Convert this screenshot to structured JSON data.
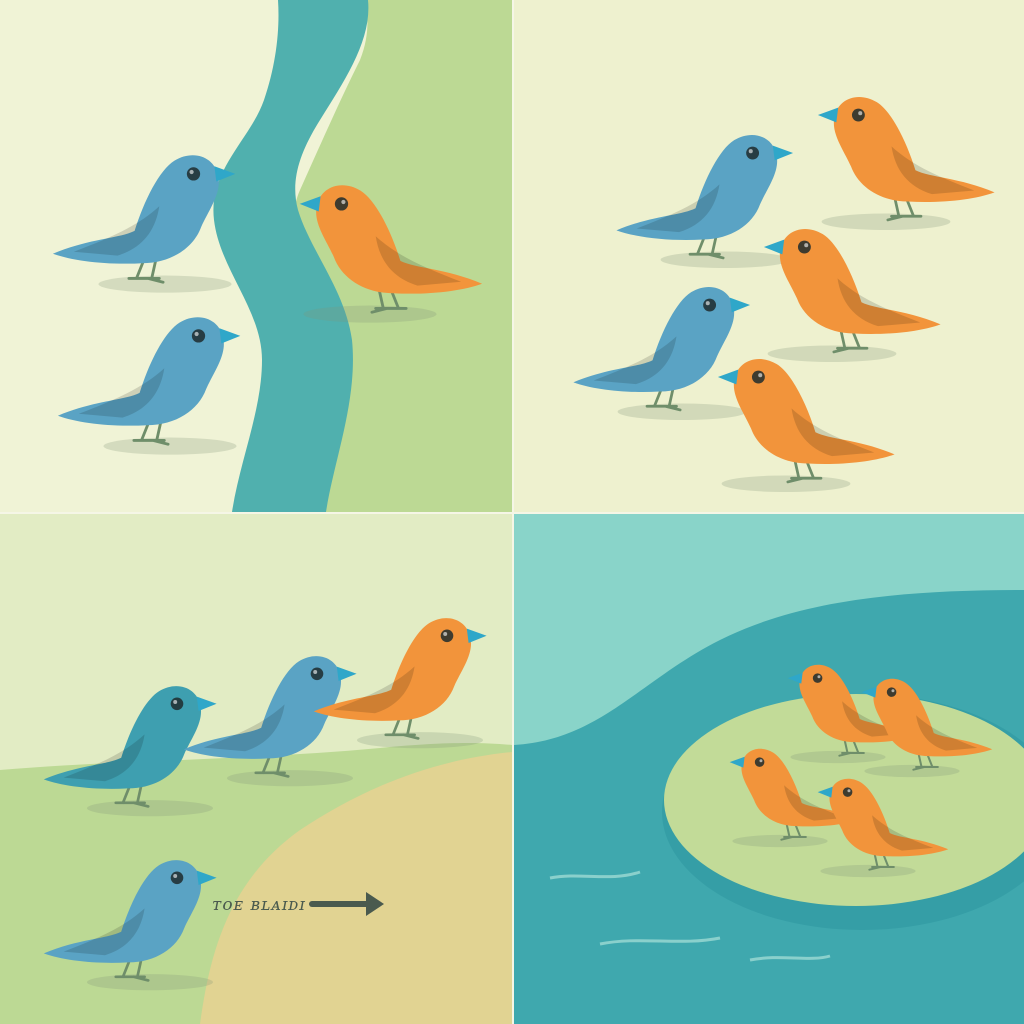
{
  "image": {
    "panels": [
      {
        "id": "top-left",
        "scene": "river-divide",
        "blue_birds": 2,
        "orange_birds": 1
      },
      {
        "id": "top-right",
        "scene": "open-meadow",
        "blue_birds": 2,
        "orange_birds": 3
      },
      {
        "id": "bottom-left",
        "scene": "sand-path",
        "blue_birds": 3,
        "orange_birds": 1
      },
      {
        "id": "bottom-right",
        "scene": "island-lake",
        "blue_birds": 0,
        "orange_birds": 4
      }
    ],
    "arrow_text": "ᴛᴏᴇ ʙʟᴀɪᴅɪ",
    "colors": {
      "cream": "#f0f3d6",
      "meadow": "#bcd994",
      "river": "#50b0ae",
      "sand": "#e4d191",
      "lake_light": "#89d4c9",
      "lake_deep": "#3fa8ae",
      "blue_bird": "#5aa3c4",
      "teal_bird": "#3e9fb0",
      "orange_bird": "#f2943b",
      "beak": "#2fa7c9",
      "legs": "#6f8e6a"
    }
  }
}
